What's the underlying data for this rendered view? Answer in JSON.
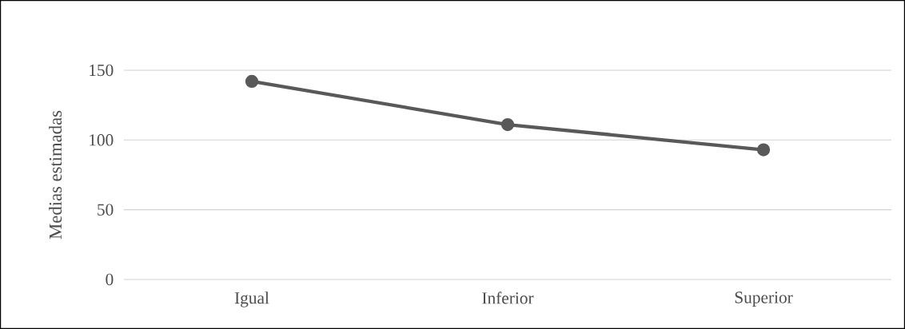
{
  "chart_data": {
    "type": "line",
    "ylabel": "Medias estimadas",
    "categories": [
      "Igual",
      "Inferior",
      "Superior"
    ],
    "series": [
      {
        "color": "#595959",
        "values": [
          142,
          111,
          93
        ]
      }
    ],
    "ylim": [
      0,
      150
    ],
    "yticks": [
      0,
      50,
      100,
      150
    ],
    "grid": "y",
    "marker": "circle",
    "line_style": "solid"
  }
}
